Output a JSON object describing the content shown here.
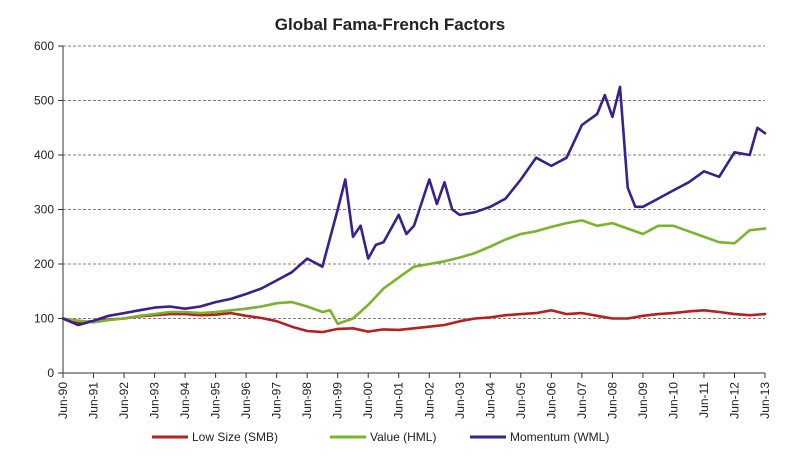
{
  "chart_data": {
    "type": "line",
    "title": "Global Fama-French Factors",
    "xlabel": "",
    "ylabel": "",
    "ylim": [
      0,
      600
    ],
    "yticks": [
      0,
      100,
      200,
      300,
      400,
      500,
      600
    ],
    "xlim": [
      1990.5,
      2013.5
    ],
    "xticks": [
      "Jun-90",
      "Jun-91",
      "Jun-92",
      "Jun-93",
      "Jun-94",
      "Jun-95",
      "Jun-96",
      "Jun-97",
      "Jun-98",
      "Jun-99",
      "Jun-00",
      "Jun-01",
      "Jun-02",
      "Jun-03",
      "Jun-04",
      "Jun-05",
      "Jun-06",
      "Jun-07",
      "Jun-08",
      "Jun-09",
      "Jun-10",
      "Jun-11",
      "Jun-12",
      "Jun-13"
    ],
    "grid": "horizontal-dashed",
    "legend_position": "bottom",
    "series": [
      {
        "name": "Low Size (SMB)",
        "color": "#b22222",
        "x": [
          1990.5,
          1991.0,
          1991.5,
          1992.0,
          1992.5,
          1993.0,
          1993.5,
          1994.0,
          1994.5,
          1995.0,
          1995.5,
          1996.0,
          1996.5,
          1997.0,
          1997.5,
          1998.0,
          1998.5,
          1999.0,
          1999.5,
          2000.0,
          2000.5,
          2001.0,
          2001.5,
          2002.0,
          2002.5,
          2003.0,
          2003.5,
          2004.0,
          2004.5,
          2005.0,
          2005.5,
          2006.0,
          2006.5,
          2007.0,
          2007.5,
          2008.0,
          2008.5,
          2009.0,
          2009.5,
          2010.0,
          2010.5,
          2011.0,
          2011.5,
          2012.0,
          2012.5,
          2013.0,
          2013.5
        ],
        "values": [
          100,
          93,
          95,
          98,
          100,
          104,
          106,
          108,
          108,
          106,
          107,
          110,
          105,
          101,
          95,
          85,
          77,
          75,
          81,
          82,
          76,
          80,
          79,
          82,
          85,
          88,
          95,
          100,
          102,
          106,
          108,
          110,
          115,
          108,
          110,
          105,
          100,
          100,
          105,
          108,
          110,
          113,
          115,
          112,
          108,
          106,
          108
        ]
      },
      {
        "name": "Value (HML)",
        "color": "#7ab32e",
        "x": [
          1990.5,
          1991.0,
          1991.5,
          1992.0,
          1992.5,
          1993.0,
          1993.5,
          1994.0,
          1994.5,
          1995.0,
          1995.5,
          1996.0,
          1996.5,
          1997.0,
          1997.5,
          1998.0,
          1998.5,
          1999.0,
          1999.25,
          1999.5,
          2000.0,
          2000.5,
          2001.0,
          2001.5,
          2002.0,
          2002.5,
          2003.0,
          2003.5,
          2004.0,
          2004.5,
          2005.0,
          2005.5,
          2006.0,
          2006.5,
          2007.0,
          2007.5,
          2008.0,
          2008.5,
          2009.0,
          2009.5,
          2010.0,
          2010.5,
          2011.0,
          2011.5,
          2012.0,
          2012.5,
          2013.0,
          2013.5
        ],
        "values": [
          100,
          96,
          93,
          97,
          100,
          105,
          108,
          112,
          112,
          110,
          112,
          115,
          118,
          122,
          128,
          130,
          122,
          112,
          115,
          90,
          100,
          125,
          155,
          175,
          195,
          200,
          205,
          212,
          220,
          232,
          245,
          255,
          260,
          268,
          275,
          280,
          270,
          275,
          265,
          255,
          270,
          270,
          260,
          250,
          240,
          238,
          262,
          265
        ]
      },
      {
        "name": "Momentum (WML)",
        "color": "#3b1f8c",
        "x": [
          1990.5,
          1991.0,
          1991.5,
          1992.0,
          1992.5,
          1993.0,
          1993.5,
          1994.0,
          1994.5,
          1995.0,
          1995.5,
          1996.0,
          1996.5,
          1997.0,
          1997.5,
          1998.0,
          1998.5,
          1999.0,
          1999.5,
          1999.75,
          2000.0,
          2000.25,
          2000.5,
          2000.75,
          2001.0,
          2001.5,
          2001.75,
          2002.0,
          2002.5,
          2002.75,
          2003.0,
          2003.25,
          2003.5,
          2004.0,
          2004.5,
          2005.0,
          2005.5,
          2006.0,
          2006.5,
          2007.0,
          2007.5,
          2008.0,
          2008.25,
          2008.5,
          2008.75,
          2009.0,
          2009.25,
          2009.5,
          2010.0,
          2010.5,
          2011.0,
          2011.5,
          2012.0,
          2012.5,
          2013.0,
          2013.25,
          2013.5
        ],
        "values": [
          100,
          88,
          96,
          105,
          110,
          115,
          120,
          122,
          118,
          122,
          130,
          136,
          145,
          155,
          170,
          185,
          210,
          195,
          300,
          355,
          250,
          270,
          210,
          235,
          240,
          290,
          255,
          270,
          355,
          310,
          350,
          300,
          290,
          295,
          305,
          320,
          355,
          395,
          380,
          395,
          455,
          475,
          510,
          470,
          525,
          340,
          305,
          305,
          320,
          335,
          350,
          370,
          360,
          405,
          400,
          450,
          440
        ]
      }
    ]
  }
}
